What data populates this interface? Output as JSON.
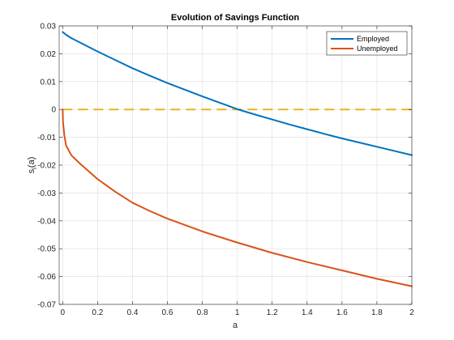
{
  "chart_data": {
    "type": "line",
    "title": "Evolution of Savings Function",
    "xlabel": "a",
    "ylabel": "s",
    "ylabel_subscript": "i",
    "ylabel_suffix": "(a)",
    "xlim": [
      -0.02,
      2
    ],
    "ylim": [
      -0.07,
      0.03
    ],
    "xticks": [
      0,
      0.2,
      0.4,
      0.6,
      0.8,
      1,
      1.2,
      1.4,
      1.6,
      1.8,
      2
    ],
    "xtick_labels": [
      "0",
      "0.2",
      "0.4",
      "0.6",
      "0.8",
      "1",
      "1.2",
      "1.4",
      "1.6",
      "1.8",
      "2"
    ],
    "yticks": [
      0.03,
      0.02,
      0.01,
      0,
      -0.01,
      -0.02,
      -0.03,
      -0.04,
      -0.05,
      -0.06,
      -0.07
    ],
    "ytick_labels": [
      "0.03",
      "0.02",
      "0.01",
      "0",
      "-0.01",
      "-0.02",
      "-0.03",
      "-0.04",
      "-0.05",
      "-0.06",
      "-0.07"
    ],
    "grid": true,
    "legend_position": "top-right",
    "series": [
      {
        "name": "Employed",
        "color": "#0072BD",
        "x": [
          0,
          0.02,
          0.05,
          0.1,
          0.2,
          0.3,
          0.4,
          0.5,
          0.6,
          0.7,
          0.8,
          0.9,
          1.0,
          1.1,
          1.2,
          1.3,
          1.4,
          1.5,
          1.6,
          1.7,
          1.8,
          1.9,
          2.0
        ],
        "y": [
          0.0278,
          0.0268,
          0.0256,
          0.024,
          0.0208,
          0.0178,
          0.0148,
          0.0121,
          0.0095,
          0.0071,
          0.0047,
          0.0024,
          0.0001,
          -0.0018,
          -0.0036,
          -0.0054,
          -0.0071,
          -0.0088,
          -0.0104,
          -0.0119,
          -0.0134,
          -0.0149,
          -0.0164
        ]
      },
      {
        "name": "Unemployed",
        "color": "#D95319",
        "x": [
          0,
          0.002,
          0.01,
          0.02,
          0.05,
          0.1,
          0.2,
          0.3,
          0.4,
          0.5,
          0.6,
          0.8,
          1.0,
          1.2,
          1.4,
          1.6,
          1.8,
          2.0
        ],
        "y": [
          0,
          -0.0045,
          -0.0095,
          -0.013,
          -0.0165,
          -0.0195,
          -0.025,
          -0.0295,
          -0.0335,
          -0.0365,
          -0.0392,
          -0.0438,
          -0.0478,
          -0.0515,
          -0.0548,
          -0.0578,
          -0.0608,
          -0.0635
        ]
      }
    ],
    "reference_line": {
      "y": 0,
      "color": "#EDB120",
      "style": "dashed"
    }
  }
}
